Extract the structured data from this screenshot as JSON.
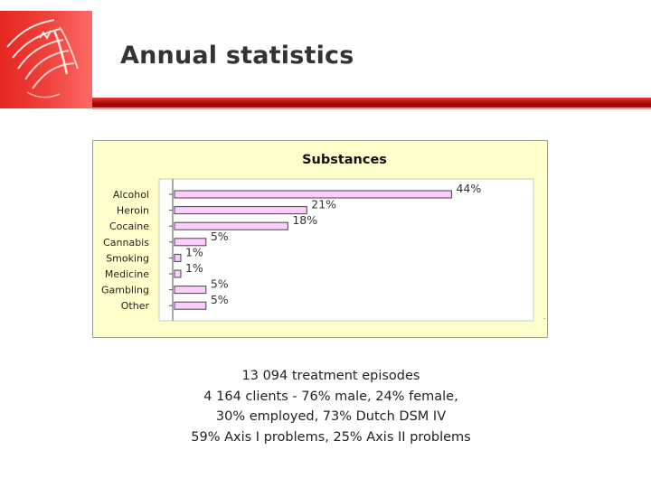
{
  "header": {
    "title": "Annual statistics"
  },
  "chart_data": {
    "type": "bar",
    "orientation": "horizontal",
    "title": "Substances",
    "categories": [
      "Alcohol",
      "Heroin",
      "Cocaine",
      "Cannabis",
      "Smoking",
      "Medicine",
      "Gambling",
      "Other"
    ],
    "values": [
      44,
      21,
      18,
      5,
      1,
      1,
      5,
      5
    ],
    "value_labels": [
      "44%",
      "21%",
      "18%",
      "5%",
      "1%",
      "1%",
      "5%",
      "5%"
    ],
    "unit": "%",
    "xlim": [
      0,
      57
    ],
    "grid": false,
    "legend": "none",
    "colors": {
      "bar_fill": "#ffccff",
      "bar_stroke": "#444444",
      "panel_background": "#ffffcc",
      "plot_background": "#ffffff"
    }
  },
  "summary": {
    "lines": [
      "13 094 treatment episodes",
      "4 164 clients - 76% male, 24% female,",
      "30% employed, 73% Dutch DSM IV",
      "59% Axis I problems, 25% Axis II problems"
    ]
  },
  "colors": {
    "accent": "#c41414",
    "logo": "#e52620",
    "title_text": "#333333"
  }
}
